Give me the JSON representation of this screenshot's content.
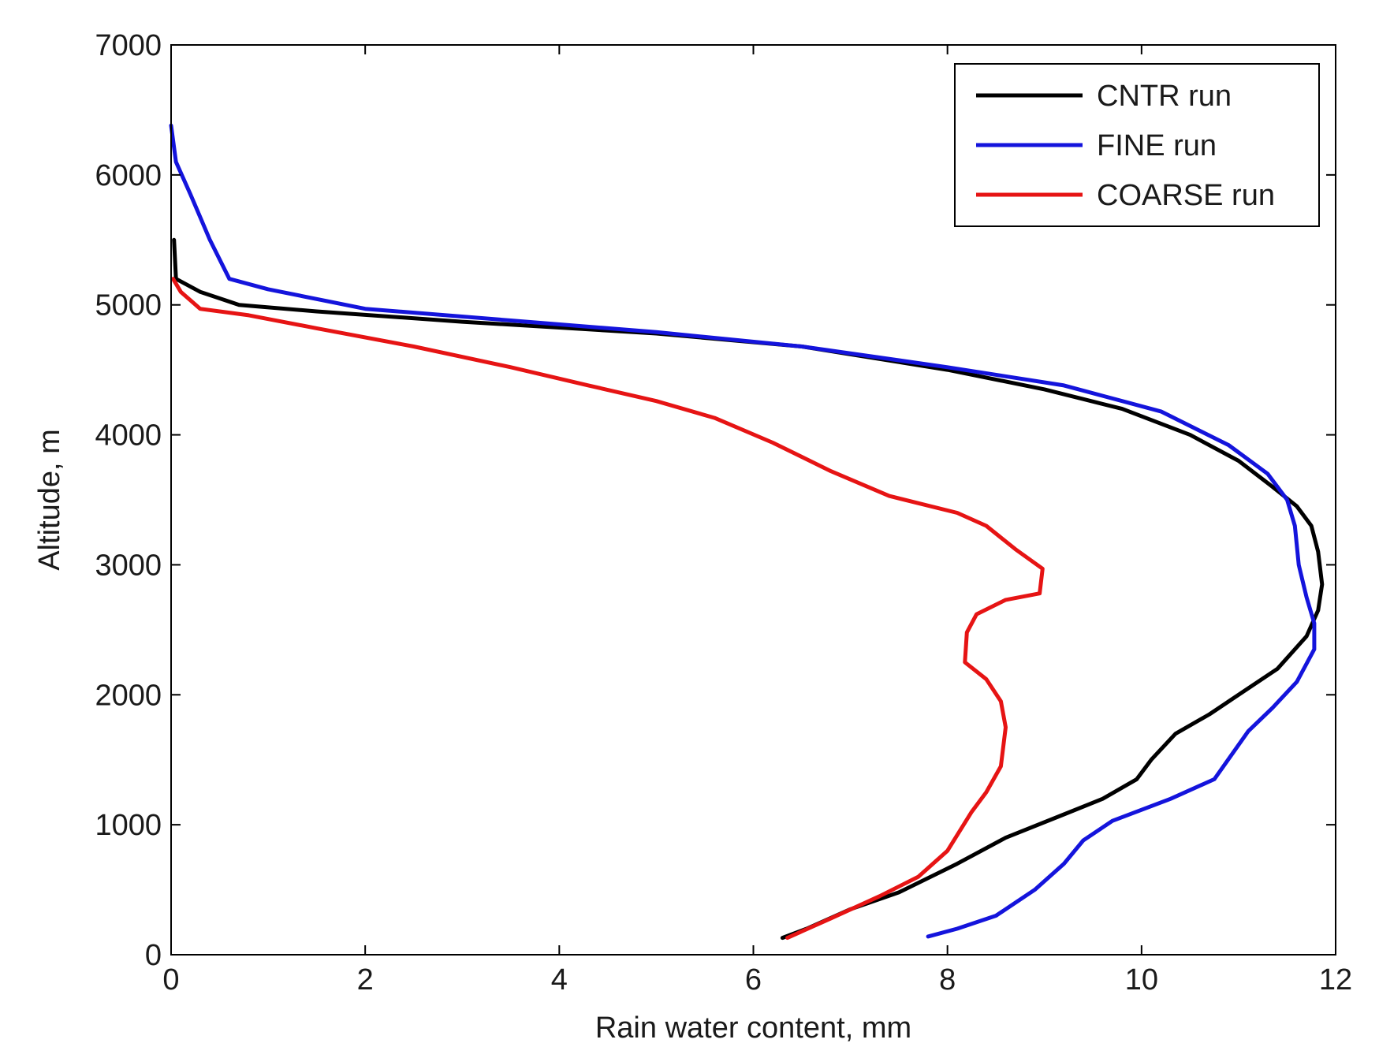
{
  "chart_data": {
    "type": "line",
    "title": "",
    "xlabel": "Rain water content, mm",
    "ylabel": "Altitude, m",
    "xlim": [
      0,
      12
    ],
    "ylim": [
      0,
      7000
    ],
    "xticks": [
      "0",
      "2",
      "4",
      "6",
      "8",
      "10",
      "12"
    ],
    "yticks": [
      "0",
      "1000",
      "2000",
      "3000",
      "4000",
      "5000",
      "6000",
      "7000"
    ],
    "grid": false,
    "legend_position": "top-right",
    "series": [
      {
        "name": "CNTR run",
        "color": "#000000",
        "points": [
          [
            0.03,
            5500
          ],
          [
            0.05,
            5200
          ],
          [
            0.3,
            5100
          ],
          [
            0.7,
            5000
          ],
          [
            1.5,
            4950
          ],
          [
            3.0,
            4870
          ],
          [
            5.0,
            4780
          ],
          [
            6.5,
            4680
          ],
          [
            8.0,
            4500
          ],
          [
            9.0,
            4350
          ],
          [
            9.8,
            4200
          ],
          [
            10.5,
            4000
          ],
          [
            11.0,
            3800
          ],
          [
            11.35,
            3600
          ],
          [
            11.6,
            3450
          ],
          [
            11.75,
            3300
          ],
          [
            11.82,
            3100
          ],
          [
            11.86,
            2850
          ],
          [
            11.82,
            2650
          ],
          [
            11.7,
            2450
          ],
          [
            11.4,
            2200
          ],
          [
            10.9,
            1950
          ],
          [
            10.7,
            1850
          ],
          [
            10.35,
            1700
          ],
          [
            10.1,
            1500
          ],
          [
            9.95,
            1350
          ],
          [
            9.6,
            1200
          ],
          [
            9.2,
            1080
          ],
          [
            8.6,
            900
          ],
          [
            8.1,
            700
          ],
          [
            7.5,
            480
          ],
          [
            7.0,
            350
          ],
          [
            6.55,
            200
          ],
          [
            6.3,
            130
          ]
        ]
      },
      {
        "name": "FINE run",
        "color": "#1414dc",
        "points": [
          [
            0.0,
            6380
          ],
          [
            0.05,
            6100
          ],
          [
            0.2,
            5850
          ],
          [
            0.4,
            5500
          ],
          [
            0.6,
            5200
          ],
          [
            1.0,
            5120
          ],
          [
            2.0,
            4970
          ],
          [
            3.5,
            4880
          ],
          [
            5.0,
            4790
          ],
          [
            6.5,
            4680
          ],
          [
            8.0,
            4520
          ],
          [
            9.2,
            4380
          ],
          [
            10.2,
            4180
          ],
          [
            10.9,
            3920
          ],
          [
            11.3,
            3700
          ],
          [
            11.5,
            3500
          ],
          [
            11.58,
            3300
          ],
          [
            11.62,
            3000
          ],
          [
            11.7,
            2750
          ],
          [
            11.78,
            2550
          ],
          [
            11.78,
            2350
          ],
          [
            11.6,
            2100
          ],
          [
            11.35,
            1900
          ],
          [
            11.1,
            1720
          ],
          [
            10.75,
            1350
          ],
          [
            10.3,
            1200
          ],
          [
            9.7,
            1030
          ],
          [
            9.4,
            880
          ],
          [
            9.2,
            700
          ],
          [
            8.9,
            500
          ],
          [
            8.5,
            300
          ],
          [
            8.1,
            200
          ],
          [
            7.8,
            140
          ]
        ]
      },
      {
        "name": "COARSE run",
        "color": "#e61414",
        "points": [
          [
            0.02,
            5200
          ],
          [
            0.1,
            5100
          ],
          [
            0.3,
            4970
          ],
          [
            0.8,
            4920
          ],
          [
            1.5,
            4820
          ],
          [
            2.5,
            4680
          ],
          [
            3.5,
            4520
          ],
          [
            4.3,
            4380
          ],
          [
            5.0,
            4260
          ],
          [
            5.6,
            4130
          ],
          [
            6.2,
            3940
          ],
          [
            6.8,
            3720
          ],
          [
            7.4,
            3530
          ],
          [
            8.1,
            3400
          ],
          [
            8.4,
            3300
          ],
          [
            8.7,
            3120
          ],
          [
            8.98,
            2970
          ],
          [
            8.95,
            2780
          ],
          [
            8.6,
            2730
          ],
          [
            8.3,
            2620
          ],
          [
            8.2,
            2480
          ],
          [
            8.18,
            2250
          ],
          [
            8.4,
            2120
          ],
          [
            8.55,
            1950
          ],
          [
            8.6,
            1750
          ],
          [
            8.55,
            1450
          ],
          [
            8.4,
            1250
          ],
          [
            8.25,
            1100
          ],
          [
            8.0,
            800
          ],
          [
            7.7,
            600
          ],
          [
            7.3,
            450
          ],
          [
            6.8,
            280
          ],
          [
            6.35,
            130
          ]
        ]
      }
    ]
  }
}
